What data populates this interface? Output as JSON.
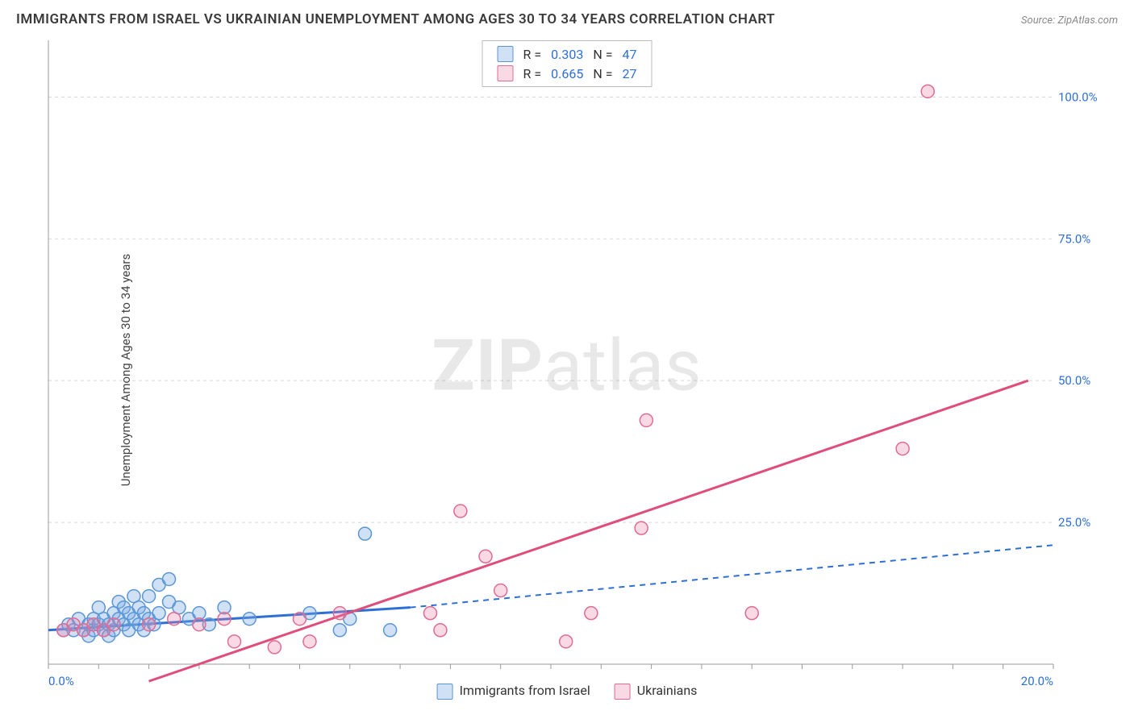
{
  "title": "IMMIGRANTS FROM ISRAEL VS UKRAINIAN UNEMPLOYMENT AMONG AGES 30 TO 34 YEARS CORRELATION CHART",
  "source_label": "Source:",
  "source_name": "ZipAtlas.com",
  "watermark_bold": "ZIP",
  "watermark_rest": "atlas",
  "ylabel": "Unemployment Among Ages 30 to 34 years",
  "chart": {
    "type": "scatter",
    "background": "#ffffff",
    "grid_color": "#d8d8d8",
    "grid_dash": "4 4",
    "axis_color": "#9a9a9a",
    "xlim": [
      0,
      20
    ],
    "ylim": [
      0,
      110
    ],
    "xtick_min_label": "0.0%",
    "xtick_max_label": "20.0%",
    "yticks": [
      {
        "v": 25,
        "label": "25.0%"
      },
      {
        "v": 50,
        "label": "50.0%"
      },
      {
        "v": 75,
        "label": "75.0%"
      },
      {
        "v": 100,
        "label": "100.0%"
      }
    ],
    "x_minor_step": 1,
    "marker_radius": 8,
    "marker_stroke_width": 1.5,
    "series": [
      {
        "id": "israel",
        "name": "Immigrants from Israel",
        "fill": "rgba(120,170,230,0.35)",
        "stroke": "#5a96d6",
        "R": "0.303",
        "N": "47",
        "trend": {
          "solid_from": [
            0,
            6
          ],
          "solid_to": [
            7.2,
            10
          ],
          "dash_from": [
            7.2,
            10
          ],
          "dash_to": [
            20,
            21
          ],
          "color": "#2e6fd6",
          "width": 3,
          "dash": "7 6"
        },
        "points": [
          [
            0.3,
            6
          ],
          [
            0.4,
            7
          ],
          [
            0.5,
            6
          ],
          [
            0.6,
            8
          ],
          [
            0.7,
            6
          ],
          [
            0.8,
            7
          ],
          [
            0.8,
            5
          ],
          [
            0.9,
            8
          ],
          [
            0.9,
            6
          ],
          [
            1.0,
            7
          ],
          [
            1.0,
            10
          ],
          [
            1.1,
            6
          ],
          [
            1.1,
            8
          ],
          [
            1.2,
            7
          ],
          [
            1.2,
            5
          ],
          [
            1.3,
            9
          ],
          [
            1.3,
            6
          ],
          [
            1.4,
            8
          ],
          [
            1.4,
            11
          ],
          [
            1.5,
            7
          ],
          [
            1.5,
            10
          ],
          [
            1.6,
            6
          ],
          [
            1.6,
            9
          ],
          [
            1.7,
            8
          ],
          [
            1.7,
            12
          ],
          [
            1.8,
            7
          ],
          [
            1.8,
            10
          ],
          [
            1.9,
            9
          ],
          [
            1.9,
            6
          ],
          [
            2.0,
            12
          ],
          [
            2.0,
            8
          ],
          [
            2.1,
            7
          ],
          [
            2.2,
            14
          ],
          [
            2.2,
            9
          ],
          [
            2.4,
            11
          ],
          [
            2.4,
            15
          ],
          [
            2.6,
            10
          ],
          [
            2.8,
            8
          ],
          [
            3.0,
            9
          ],
          [
            3.2,
            7
          ],
          [
            3.5,
            10
          ],
          [
            4.0,
            8
          ],
          [
            5.2,
            9
          ],
          [
            5.8,
            6
          ],
          [
            6.0,
            8
          ],
          [
            6.3,
            23
          ],
          [
            6.8,
            6
          ]
        ]
      },
      {
        "id": "ukraine",
        "name": "Ukrainians",
        "fill": "rgba(235,130,165,0.30)",
        "stroke": "#e06b94",
        "R": "0.665",
        "N": "27",
        "trend": {
          "solid_from": [
            2.0,
            -3
          ],
          "solid_to": [
            19.5,
            50
          ],
          "dash_from": [
            0,
            0
          ],
          "dash_to": [
            0,
            0
          ],
          "color": "#e04d7a",
          "width": 3,
          "dash": ""
        },
        "points": [
          [
            0.3,
            6
          ],
          [
            0.5,
            7
          ],
          [
            0.7,
            6
          ],
          [
            0.9,
            7
          ],
          [
            1.1,
            6
          ],
          [
            1.3,
            7
          ],
          [
            2.0,
            7
          ],
          [
            2.5,
            8
          ],
          [
            3.0,
            7
          ],
          [
            3.5,
            8
          ],
          [
            3.7,
            4
          ],
          [
            4.5,
            3
          ],
          [
            5.0,
            8
          ],
          [
            5.2,
            4
          ],
          [
            5.8,
            9
          ],
          [
            7.6,
            9
          ],
          [
            7.8,
            6
          ],
          [
            8.2,
            27
          ],
          [
            8.7,
            19
          ],
          [
            9.0,
            13
          ],
          [
            10.3,
            4
          ],
          [
            10.8,
            9
          ],
          [
            11.8,
            24
          ],
          [
            11.9,
            43
          ],
          [
            14.0,
            9
          ],
          [
            17.0,
            38
          ],
          [
            17.5,
            101
          ]
        ]
      }
    ]
  },
  "legend_top": [
    {
      "sw_fill": "rgba(120,170,230,0.35)",
      "sw_border": "#5a96d6",
      "R_label": "R =",
      "R": "0.303",
      "N_label": "N =",
      "N": "47"
    },
    {
      "sw_fill": "rgba(235,130,165,0.30)",
      "sw_border": "#e06b94",
      "R_label": "R =",
      "R": "0.665",
      "N_label": "N =",
      "N": "27"
    }
  ],
  "legend_bottom": [
    {
      "sw_fill": "rgba(120,170,230,0.35)",
      "sw_border": "#5a96d6",
      "label": "Immigrants from Israel"
    },
    {
      "sw_fill": "rgba(235,130,165,0.30)",
      "sw_border": "#e06b94",
      "label": "Ukrainians"
    }
  ]
}
